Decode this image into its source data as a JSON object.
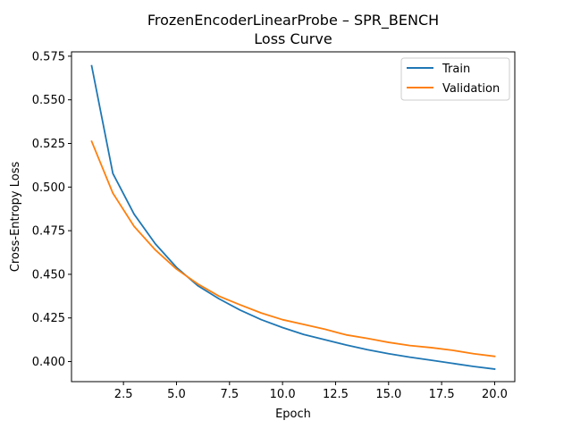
{
  "chart_data": {
    "type": "line",
    "title": "FrozenEncoderLinearProbe – SPR_BENCH",
    "subtitle": "Loss Curve",
    "xlabel": "Epoch",
    "ylabel": "Cross-Entropy Loss",
    "xlim": [
      0.05,
      20.95
    ],
    "ylim": [
      0.3885,
      0.5775
    ],
    "xticks": [
      2.5,
      5.0,
      7.5,
      10.0,
      12.5,
      15.0,
      17.5,
      20.0
    ],
    "xtick_labels": [
      "2.5",
      "5.0",
      "7.5",
      "10.0",
      "12.5",
      "15.0",
      "17.5",
      "20.0"
    ],
    "yticks": [
      0.4,
      0.425,
      0.45,
      0.475,
      0.5,
      0.525,
      0.55,
      0.575
    ],
    "ytick_labels": [
      "0.400",
      "0.425",
      "0.450",
      "0.475",
      "0.500",
      "0.525",
      "0.550",
      "0.575"
    ],
    "grid": false,
    "legend_position": "top-right",
    "x": [
      1,
      2,
      3,
      4,
      5,
      6,
      7,
      8,
      9,
      10,
      11,
      12,
      13,
      14,
      15,
      16,
      17,
      18,
      19,
      20
    ],
    "series": [
      {
        "name": "Train",
        "color": "#1f77b4",
        "values": [
          0.5695,
          0.5078,
          0.4845,
          0.4675,
          0.454,
          0.4435,
          0.436,
          0.4295,
          0.424,
          0.4195,
          0.4155,
          0.4125,
          0.4095,
          0.4068,
          0.4045,
          0.4025,
          0.4008,
          0.399,
          0.3972,
          0.3957
        ]
      },
      {
        "name": "Validation",
        "color": "#ff7f0e",
        "values": [
          0.5262,
          0.4965,
          0.4775,
          0.464,
          0.453,
          0.4445,
          0.4375,
          0.4325,
          0.4278,
          0.424,
          0.4213,
          0.4185,
          0.4153,
          0.4133,
          0.411,
          0.4092,
          0.408,
          0.4065,
          0.4045,
          0.403
        ]
      }
    ]
  }
}
